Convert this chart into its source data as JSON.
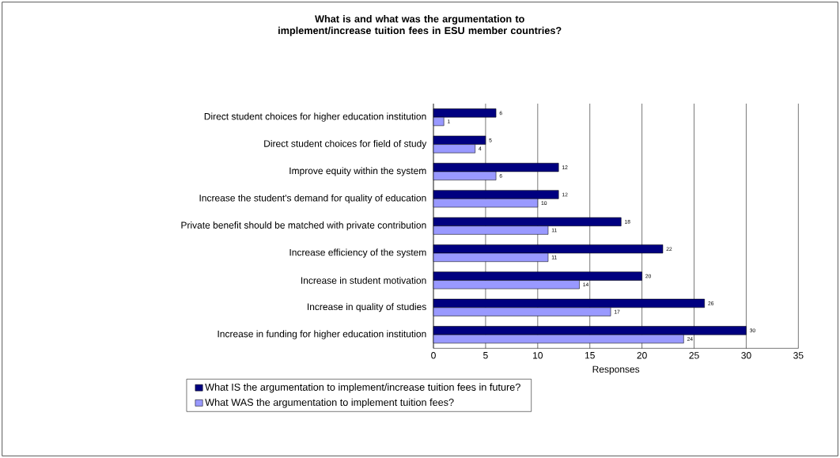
{
  "chart_data": {
    "type": "bar",
    "orientation": "horizontal",
    "title": "What is and what was the argumentation to implement/increase tuition fees in ESU member countries?",
    "xlabel": "Responses",
    "categories": [
      "Direct student choices for higher education institution",
      "Direct student choices for field of study",
      "Improve equity within the system",
      "Increase the student's demand for quality of education",
      "Private benefit should be matched with private contribution",
      "Increase efficiency of the system",
      "Increase in student motivation",
      "Increase in quality of studies",
      "Increase in funding for higher education institution"
    ],
    "series": [
      {
        "name": "What IS the argumentation to implement/increase tuition fees in future?",
        "color": "#000080",
        "values": [
          6,
          5,
          12,
          12,
          18,
          22,
          20,
          26,
          30
        ]
      },
      {
        "name": "What WAS the argumentation to implement tuition fees?",
        "color": "#9999ff",
        "values": [
          1,
          4,
          6,
          10,
          11,
          11,
          14,
          17,
          24
        ]
      }
    ],
    "xlim": [
      0,
      35
    ],
    "xticks": [
      0,
      5,
      10,
      15,
      20,
      25,
      30,
      35
    ],
    "grid": "x",
    "legend": "bottom",
    "data_labels": true
  }
}
